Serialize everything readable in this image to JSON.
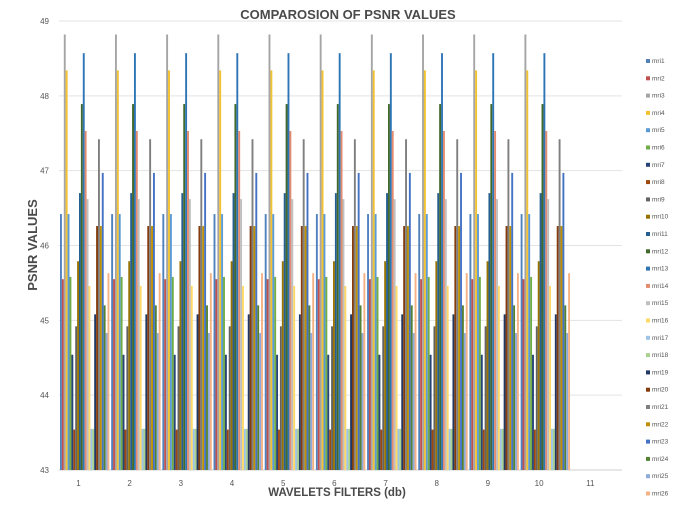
{
  "chart_data": {
    "type": "bar",
    "title": "COMPAROSION OF PSNR VALUES",
    "xlabel": "WAVELETS FILTERS   (db)",
    "ylabel": "PSNR VALUES",
    "ylim": [
      43,
      49
    ],
    "yticks": [
      "43",
      "44",
      "45",
      "46",
      "47",
      "48",
      "49"
    ],
    "categories": [
      "1",
      "2",
      "3",
      "4",
      "5",
      "6",
      "7",
      "8",
      "9",
      "10",
      "11"
    ],
    "grid": true,
    "legend_position": "right",
    "series": [
      {
        "name": "mri1",
        "color": "#4f81bd",
        "values": [
          46.42,
          46.42,
          46.42,
          46.42,
          46.42,
          46.42,
          46.42,
          46.42,
          46.42,
          46.42,
          null
        ]
      },
      {
        "name": "mri2",
        "color": "#c0504d",
        "values": [
          45.55,
          45.55,
          45.55,
          45.55,
          45.55,
          45.55,
          45.55,
          45.55,
          45.55,
          45.55,
          null
        ]
      },
      {
        "name": "mri3",
        "color": "#a5a5a5",
        "values": [
          48.82,
          48.82,
          48.82,
          48.82,
          48.82,
          48.82,
          48.82,
          48.82,
          48.82,
          48.82,
          null
        ]
      },
      {
        "name": "mri4",
        "color": "#f2c230",
        "values": [
          48.34,
          48.34,
          48.34,
          48.34,
          48.34,
          48.34,
          48.34,
          48.34,
          48.34,
          48.34,
          null
        ]
      },
      {
        "name": "mri5",
        "color": "#5b9bd5",
        "values": [
          46.42,
          46.42,
          46.42,
          46.42,
          46.42,
          46.42,
          46.42,
          46.42,
          46.42,
          46.42,
          null
        ]
      },
      {
        "name": "mri6",
        "color": "#70ad47",
        "values": [
          45.58,
          45.58,
          45.58,
          45.58,
          45.58,
          45.58,
          45.58,
          45.58,
          45.58,
          45.58,
          null
        ]
      },
      {
        "name": "mri7",
        "color": "#264478",
        "values": [
          44.54,
          44.54,
          44.54,
          44.54,
          44.54,
          44.54,
          44.54,
          44.54,
          44.54,
          44.54,
          null
        ]
      },
      {
        "name": "mri8",
        "color": "#9e480e",
        "values": [
          43.54,
          43.54,
          43.54,
          43.54,
          43.54,
          43.54,
          43.54,
          43.54,
          43.54,
          43.54,
          null
        ]
      },
      {
        "name": "mri9",
        "color": "#636363",
        "values": [
          44.92,
          44.92,
          44.92,
          44.92,
          44.92,
          44.92,
          44.92,
          44.92,
          44.92,
          44.92,
          null
        ]
      },
      {
        "name": "mri10",
        "color": "#997300",
        "values": [
          45.79,
          45.79,
          45.79,
          45.79,
          45.79,
          45.79,
          45.79,
          45.79,
          45.79,
          45.79,
          null
        ]
      },
      {
        "name": "mri11",
        "color": "#255e91",
        "values": [
          46.7,
          46.7,
          46.7,
          46.7,
          46.7,
          46.7,
          46.7,
          46.7,
          46.7,
          46.7,
          null
        ]
      },
      {
        "name": "mri12",
        "color": "#43682b",
        "values": [
          47.89,
          47.89,
          47.89,
          47.89,
          47.89,
          47.89,
          47.89,
          47.89,
          47.89,
          47.89,
          null
        ]
      },
      {
        "name": "mri13",
        "color": "#2e75b6",
        "values": [
          48.57,
          48.57,
          48.57,
          48.57,
          48.57,
          48.57,
          48.57,
          48.57,
          48.57,
          48.57,
          null
        ]
      },
      {
        "name": "mri14",
        "color": "#e28b6e",
        "values": [
          47.53,
          47.53,
          47.53,
          47.53,
          47.53,
          47.53,
          47.53,
          47.53,
          47.53,
          47.53,
          null
        ]
      },
      {
        "name": "mri15",
        "color": "#bfbfbf",
        "values": [
          46.62,
          46.62,
          46.62,
          46.62,
          46.62,
          46.62,
          46.62,
          46.62,
          46.62,
          46.62,
          null
        ]
      },
      {
        "name": "mri16",
        "color": "#ffd966",
        "values": [
          45.46,
          45.46,
          45.46,
          45.46,
          45.46,
          45.46,
          45.46,
          45.46,
          45.46,
          45.46,
          null
        ]
      },
      {
        "name": "mri17",
        "color": "#9dc3e6",
        "values": [
          43.55,
          43.55,
          43.55,
          43.55,
          43.55,
          43.55,
          43.55,
          43.55,
          43.55,
          43.55,
          null
        ]
      },
      {
        "name": "mri18",
        "color": "#a9d18e",
        "values": [
          43.55,
          43.55,
          43.55,
          43.55,
          43.55,
          43.55,
          43.55,
          43.55,
          43.55,
          43.55,
          null
        ]
      },
      {
        "name": "mri19",
        "color": "#203864",
        "values": [
          45.08,
          45.08,
          45.08,
          45.08,
          45.08,
          45.08,
          45.08,
          45.08,
          45.08,
          45.08,
          null
        ]
      },
      {
        "name": "mri20",
        "color": "#843c0c",
        "values": [
          46.26,
          46.26,
          46.26,
          46.26,
          46.26,
          46.26,
          46.26,
          46.26,
          46.26,
          46.26,
          null
        ]
      },
      {
        "name": "mri21",
        "color": "#7f7f7f",
        "values": [
          47.42,
          47.42,
          47.42,
          47.42,
          47.42,
          47.42,
          47.42,
          47.42,
          47.42,
          47.42,
          null
        ]
      },
      {
        "name": "mri22",
        "color": "#bf9000",
        "values": [
          46.26,
          46.26,
          46.26,
          46.26,
          46.26,
          46.26,
          46.26,
          46.26,
          46.26,
          46.26,
          null
        ]
      },
      {
        "name": "mri23",
        "color": "#4472c4",
        "values": [
          46.97,
          46.97,
          46.97,
          46.97,
          46.97,
          46.97,
          46.97,
          46.97,
          46.97,
          46.97,
          null
        ]
      },
      {
        "name": "mri24",
        "color": "#548235",
        "values": [
          45.2,
          45.2,
          45.2,
          45.2,
          45.2,
          45.2,
          45.2,
          45.2,
          45.2,
          45.2,
          null
        ]
      },
      {
        "name": "mri25",
        "color": "#8ea9db",
        "values": [
          44.83,
          44.83,
          44.83,
          44.83,
          44.83,
          44.83,
          44.83,
          44.83,
          44.83,
          44.83,
          null
        ]
      },
      {
        "name": "mri26",
        "color": "#f4b183",
        "values": [
          45.63,
          45.63,
          45.63,
          45.63,
          45.63,
          45.63,
          45.63,
          45.63,
          45.63,
          45.63,
          null
        ]
      }
    ]
  }
}
